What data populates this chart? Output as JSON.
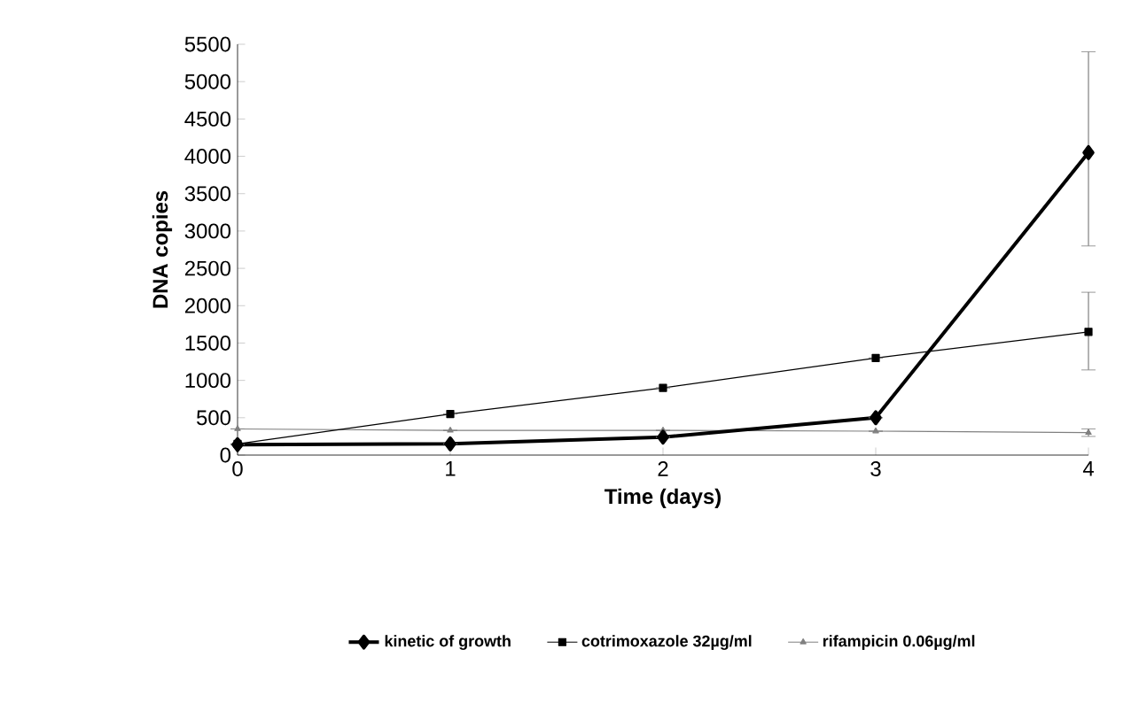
{
  "chart_data": {
    "type": "line",
    "xlabel": "Time (days)",
    "ylabel": "DNA copies",
    "x": [
      0,
      1,
      2,
      3,
      4
    ],
    "xlim": [
      0,
      4
    ],
    "xticks": [
      0,
      1,
      2,
      3,
      4
    ],
    "ylim": [
      0,
      5500
    ],
    "yticks": [
      0,
      500,
      1000,
      1500,
      2000,
      2500,
      3000,
      3500,
      4000,
      4500,
      5000,
      5500
    ],
    "series": [
      {
        "name": "kinetic of growth",
        "color": "#000000",
        "marker": "diamond",
        "values": [
          140,
          150,
          240,
          500,
          4050
        ],
        "errors": [
          null,
          null,
          null,
          null,
          [
            2800,
            5400
          ]
        ]
      },
      {
        "name": "cotrimoxazole 32µg/ml",
        "color": "#000000",
        "marker": "square",
        "values": [
          150,
          550,
          900,
          1300,
          1650
        ],
        "errors": [
          null,
          null,
          null,
          null,
          [
            1140,
            2180
          ]
        ]
      },
      {
        "name": "rifampicin 0.06µg/ml",
        "color": "#808080",
        "marker": "triangle",
        "values": [
          350,
          330,
          330,
          320,
          300
        ],
        "errors": [
          null,
          null,
          null,
          null,
          50
        ]
      }
    ],
    "grid": false,
    "legend": "bottom"
  }
}
